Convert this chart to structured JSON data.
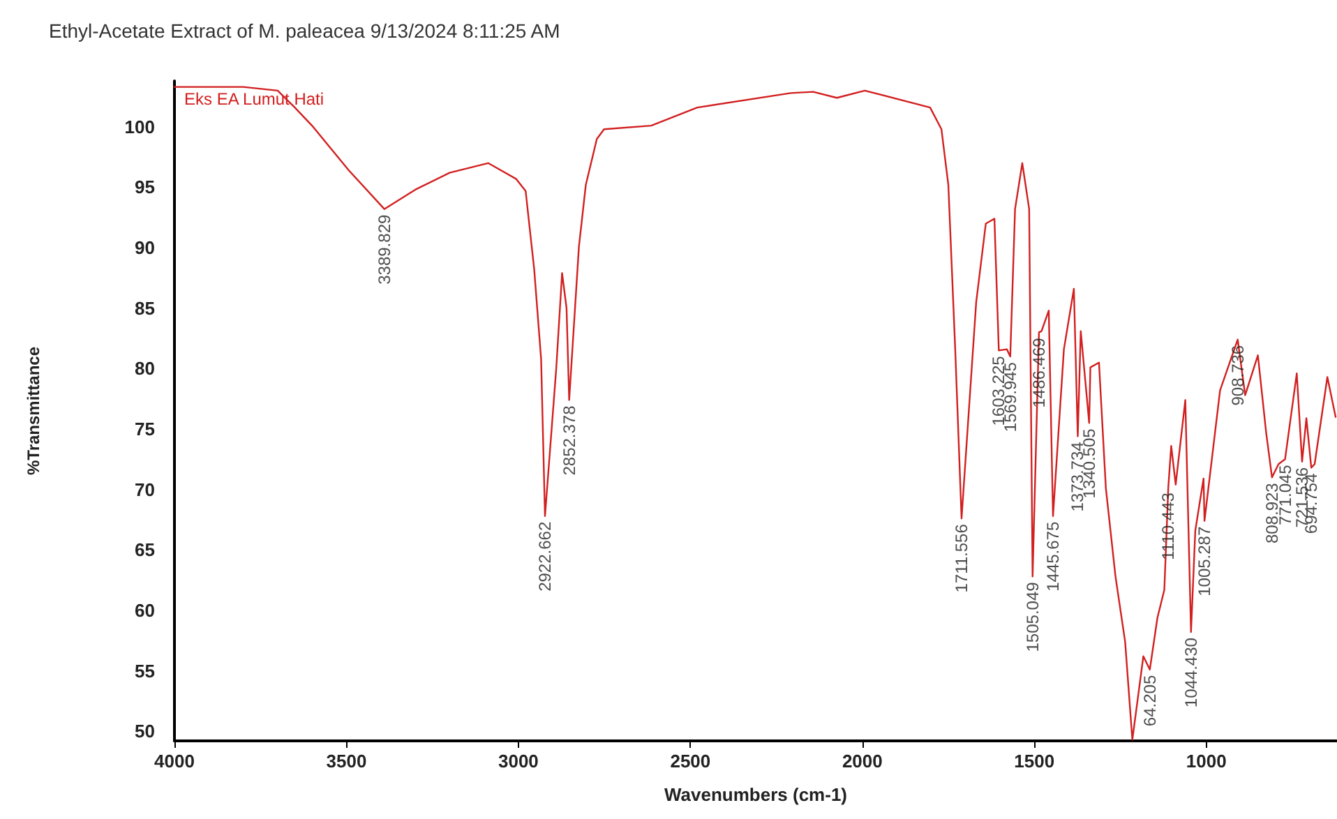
{
  "chart_data": {
    "type": "line",
    "title": "Ethyl-Acetate Extract of M. paleacea 9/13/2024 8:11:25 AM",
    "xlabel": "Wavenumbers (cm-1)",
    "ylabel": "%Transmittance",
    "xlim": [
      4000,
      620
    ],
    "xticks": [
      4000,
      3500,
      3000,
      2500,
      2000,
      1500,
      1000
    ],
    "ylim": [
      49.2,
      103.8
    ],
    "yticks": [
      50,
      55,
      60,
      65,
      70,
      75,
      80,
      85,
      90,
      95,
      100
    ],
    "grid": false,
    "legend": "top left",
    "marker": "none",
    "line_style": "solid",
    "series": [
      {
        "name": "Eks EA Lumut Hati",
        "color": "#d21f1f",
        "x": [
          4000,
          3800,
          3700,
          3650,
          3600,
          3493,
          3389.829,
          3300,
          3200,
          3088,
          3007,
          2979,
          2954,
          2934,
          2922.662,
          2890,
          2873,
          2860,
          2852.378,
          2824,
          2804,
          2772,
          2751,
          2614,
          2480,
          2208,
          2143,
          2074,
          1993,
          1803,
          1770,
          1750,
          1730,
          1711.556,
          1669,
          1641,
          1616,
          1603.225,
          1580,
          1569.945,
          1556,
          1535,
          1515,
          1505.049,
          1486.469,
          1479,
          1458,
          1445.675,
          1414,
          1385,
          1373.734,
          1365,
          1340.505,
          1337,
          1312,
          1292,
          1264,
          1236,
          1215,
          1183,
          1164.205,
          1142,
          1122,
          1110.443,
          1102,
          1089,
          1061,
          1044.43,
          1032,
          1008,
          1005.287,
          960,
          908.736,
          887,
          850,
          826,
          808.923,
          790,
          771.045,
          737,
          721.536,
          709,
          694.754,
          685,
          648,
          624
        ],
        "values": [
          103.3,
          103.3,
          103,
          101.6,
          100.1,
          96.4,
          93.2,
          94.8,
          96.2,
          97,
          95.7,
          94.7,
          88.2,
          80.8,
          67.8,
          80,
          87.9,
          85,
          77.4,
          90.1,
          95.2,
          99,
          99.8,
          100.1,
          101.6,
          102.8,
          102.9,
          102.4,
          103,
          101.6,
          99.8,
          95.2,
          81.6,
          67.6,
          85.5,
          92,
          92.4,
          81.5,
          81.6,
          81,
          93.2,
          97,
          93.2,
          62.8,
          83,
          83.1,
          84.8,
          67.8,
          81.6,
          86.6,
          74.4,
          83.1,
          75.5,
          80.1,
          80.5,
          70.1,
          62.8,
          57.4,
          49.3,
          56.2,
          55.1,
          59.4,
          61.7,
          70.2,
          73.6,
          70.4,
          77.4,
          58.2,
          66.6,
          70.9,
          67.4,
          78.2,
          82.4,
          77.8,
          81.1,
          74.7,
          71,
          72.1,
          72.5,
          79.6,
          72.3,
          75.9,
          71.8,
          72.1,
          79.3,
          76
        ]
      }
    ],
    "annotations": [
      {
        "text": "3389.829",
        "x": 3389.829,
        "y": 93.2
      },
      {
        "text": "2922.662",
        "x": 2922.662,
        "y": 67.8
      },
      {
        "text": "2852.378",
        "x": 2852.378,
        "y": 77.4
      },
      {
        "text": "1711.556",
        "x": 1711.556,
        "y": 67.6
      },
      {
        "text": "1603.225",
        "x": 1603.225,
        "y": 81.5
      },
      {
        "text": "1569.945",
        "x": 1569.945,
        "y": 81
      },
      {
        "text": "1505.049",
        "x": 1505.049,
        "y": 62.8
      },
      {
        "text": "1486.469",
        "x": 1486.469,
        "y": 83
      },
      {
        "text": "1445.675",
        "x": 1445.675,
        "y": 67.8
      },
      {
        "text": "1373.734",
        "x": 1373.734,
        "y": 74.4
      },
      {
        "text": "1340.505",
        "x": 1340.505,
        "y": 75.5
      },
      {
        "text": "64.205",
        "x": 1164.205,
        "y": 55.1
      },
      {
        "text": "1110.443",
        "x": 1110.443,
        "y": 70.2
      },
      {
        "text": "1044.430",
        "x": 1044.43,
        "y": 58.2
      },
      {
        "text": "1005.287",
        "x": 1005.287,
        "y": 67.4
      },
      {
        "text": "908.736",
        "x": 908.736,
        "y": 82.4
      },
      {
        "text": "808.923",
        "x": 808.923,
        "y": 71
      },
      {
        "text": "771.045",
        "x": 771.045,
        "y": 72.5
      },
      {
        "text": "721.536",
        "x": 721.536,
        "y": 72.3
      },
      {
        "text": "694.754",
        "x": 694.754,
        "y": 71.8
      }
    ]
  }
}
